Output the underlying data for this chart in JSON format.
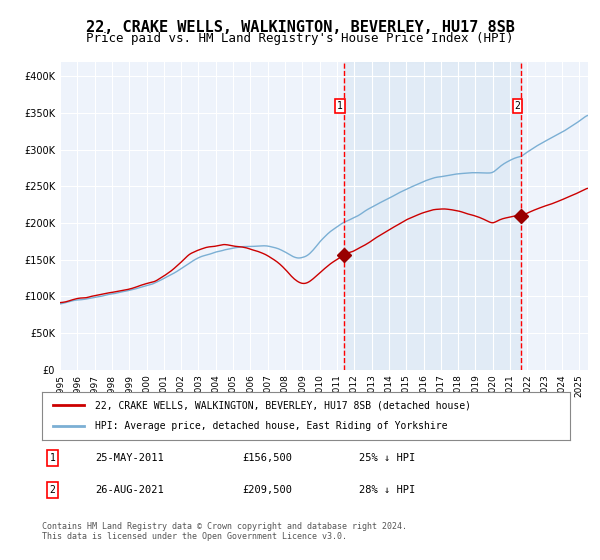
{
  "title": "22, CRAKE WELLS, WALKINGTON, BEVERLEY, HU17 8SB",
  "subtitle": "Price paid vs. HM Land Registry's House Price Index (HPI)",
  "title_fontsize": 11,
  "subtitle_fontsize": 9,
  "background_color": "#ffffff",
  "plot_bg_color": "#eef3fb",
  "grid_color": "#ffffff",
  "hpi_line_color": "#7bafd4",
  "price_line_color": "#cc0000",
  "marker_color": "#990000",
  "dashed_line_color": "#ff0000",
  "shaded_region_color": "#dce8f5",
  "ylim": [
    0,
    420000
  ],
  "yticks": [
    0,
    50000,
    100000,
    150000,
    200000,
    250000,
    300000,
    350000,
    400000
  ],
  "ytick_labels": [
    "£0",
    "£50K",
    "£100K",
    "£150K",
    "£200K",
    "£250K",
    "£300K",
    "£350K",
    "£400K"
  ],
  "xlim_start": 1995.0,
  "xlim_end": 2025.5,
  "xticks": [
    1995,
    1996,
    1997,
    1998,
    1999,
    2000,
    2001,
    2002,
    2003,
    2004,
    2005,
    2006,
    2007,
    2008,
    2009,
    2010,
    2011,
    2012,
    2013,
    2014,
    2015,
    2016,
    2017,
    2018,
    2019,
    2020,
    2021,
    2022,
    2023,
    2024,
    2025
  ],
  "sale1_x": 2011.4,
  "sale1_y": 156500,
  "sale1_label": "1",
  "sale2_x": 2021.65,
  "sale2_y": 209500,
  "sale2_label": "2",
  "legend_line1": "22, CRAKE WELLS, WALKINGTON, BEVERLEY, HU17 8SB (detached house)",
  "legend_line2": "HPI: Average price, detached house, East Riding of Yorkshire",
  "note1_label": "1",
  "note1_date": "25-MAY-2011",
  "note1_price": "£156,500",
  "note1_change": "25% ↓ HPI",
  "note2_label": "2",
  "note2_date": "26-AUG-2021",
  "note2_price": "£209,500",
  "note2_change": "28% ↓ HPI",
  "footer": "Contains HM Land Registry data © Crown copyright and database right 2024.\nThis data is licensed under the Open Government Licence v3.0."
}
